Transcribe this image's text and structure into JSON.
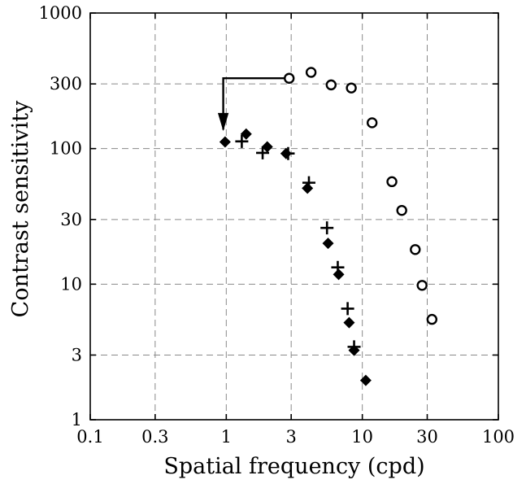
{
  "chart_data": {
    "type": "scatter",
    "xlabel": "Spatial frequency (cpd)",
    "ylabel": "Contrast sensitivity",
    "xscale": "log",
    "yscale": "log",
    "xlim": [
      0.1,
      100
    ],
    "ylim": [
      1,
      1000
    ],
    "grid": true,
    "x_ticks": [
      0.1,
      0.3,
      1,
      3,
      10,
      30,
      100
    ],
    "x_tick_labels": [
      "0.1",
      "0.3",
      "1",
      "3",
      "10",
      "30",
      "100"
    ],
    "y_ticks": [
      1,
      3,
      10,
      30,
      100,
      300,
      1000
    ],
    "y_tick_labels": [
      "1",
      "3",
      "10",
      "30",
      "100",
      "300",
      "1000"
    ],
    "series": [
      {
        "marker": "open-circle",
        "points": [
          {
            "x": 2.9,
            "y": 330
          },
          {
            "x": 4.2,
            "y": 365
          },
          {
            "x": 5.9,
            "y": 295
          },
          {
            "x": 8.3,
            "y": 280
          },
          {
            "x": 11.8,
            "y": 155
          },
          {
            "x": 16.5,
            "y": 57
          },
          {
            "x": 19.5,
            "y": 35
          },
          {
            "x": 24.5,
            "y": 18
          },
          {
            "x": 27.5,
            "y": 9.8
          },
          {
            "x": 32.5,
            "y": 5.5
          }
        ]
      },
      {
        "marker": "filled-diamond",
        "points": [
          {
            "x": 0.98,
            "y": 112
          },
          {
            "x": 1.4,
            "y": 128
          },
          {
            "x": 2.0,
            "y": 103
          },
          {
            "x": 2.75,
            "y": 92
          },
          {
            "x": 3.95,
            "y": 51
          },
          {
            "x": 5.6,
            "y": 20
          },
          {
            "x": 6.7,
            "y": 11.8
          },
          {
            "x": 8.0,
            "y": 5.2
          },
          {
            "x": 8.7,
            "y": 3.25
          },
          {
            "x": 10.6,
            "y": 1.95
          }
        ]
      },
      {
        "marker": "plus",
        "points": [
          {
            "x": 1.3,
            "y": 113
          },
          {
            "x": 1.85,
            "y": 93
          },
          {
            "x": 2.85,
            "y": 92
          },
          {
            "x": 4.05,
            "y": 56
          },
          {
            "x": 5.5,
            "y": 26
          },
          {
            "x": 6.6,
            "y": 13.3
          },
          {
            "x": 7.8,
            "y": 6.6
          },
          {
            "x": 8.7,
            "y": 3.45
          }
        ]
      }
    ],
    "annotation": {
      "type": "arrow",
      "path": [
        {
          "x": 2.9,
          "y": 330
        },
        {
          "x": 0.95,
          "y": 330
        },
        {
          "x": 0.95,
          "y": 138
        }
      ]
    }
  }
}
